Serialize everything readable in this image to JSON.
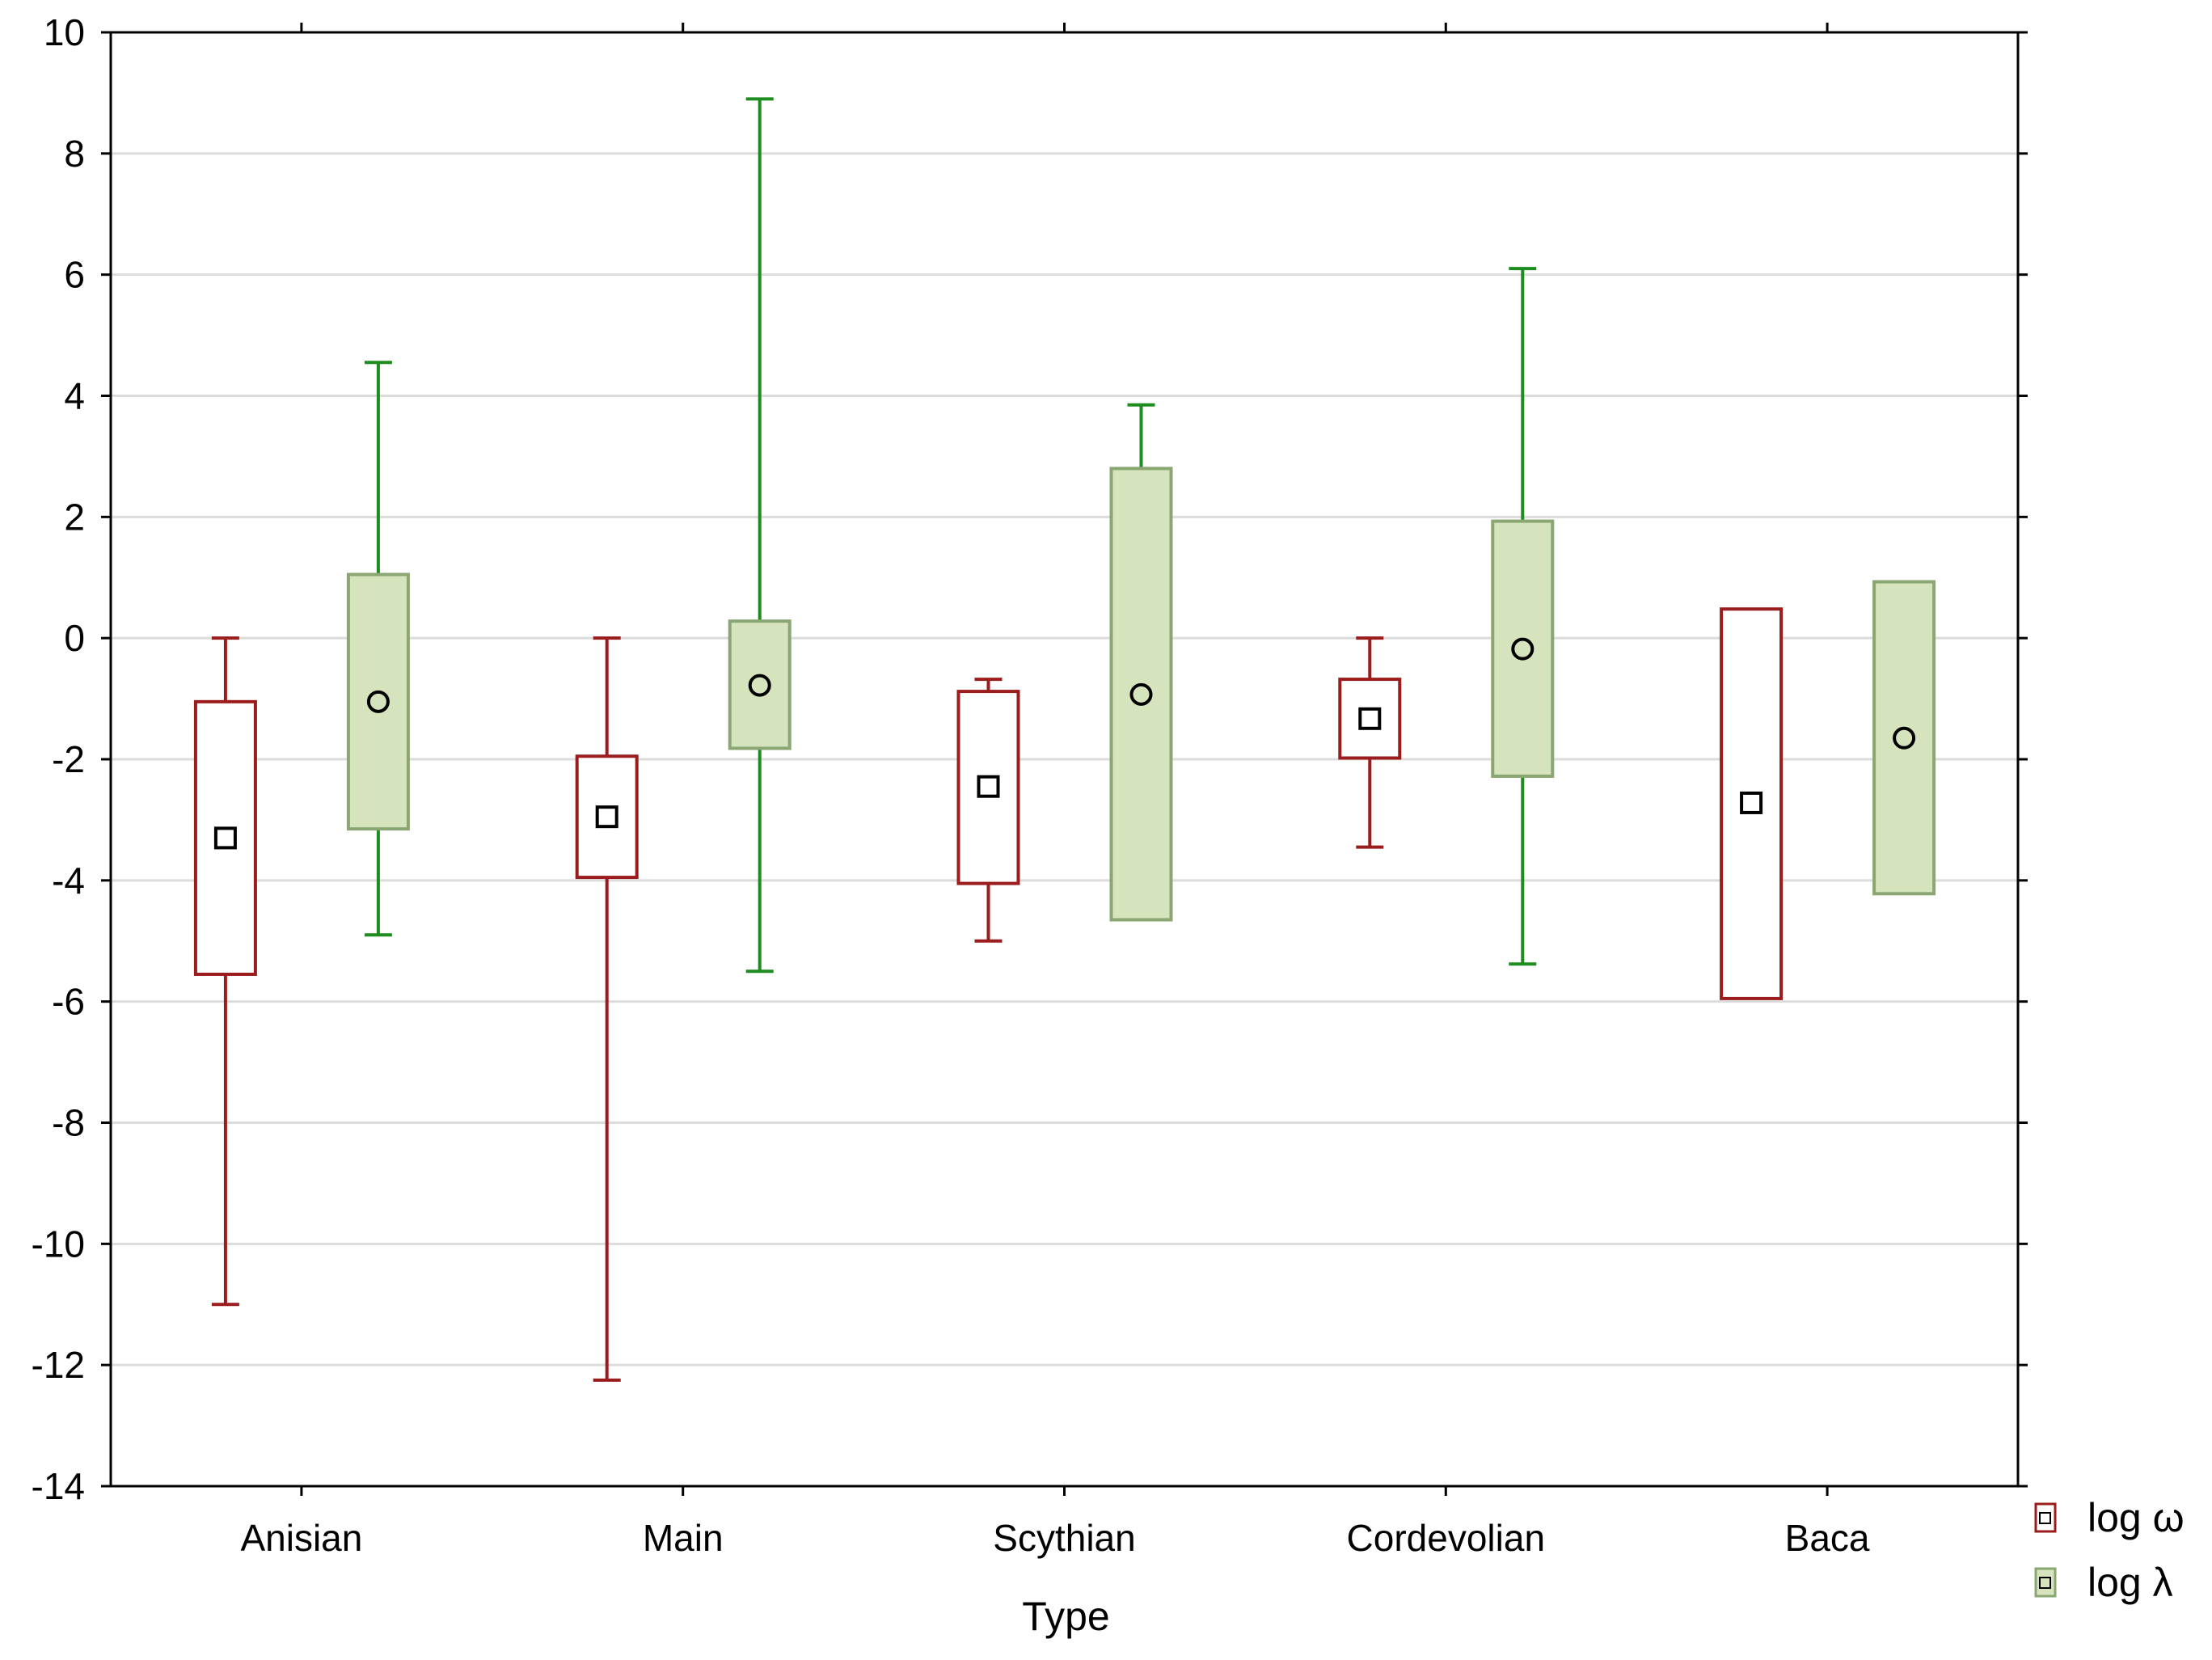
{
  "chart_data": {
    "type": "boxplot",
    "title": "",
    "xlabel": "Type",
    "ylabel": "",
    "ylim": [
      -14,
      10
    ],
    "yticks": [
      10,
      8,
      6,
      4,
      2,
      0,
      -2,
      -4,
      -6,
      -8,
      -10,
      -12,
      -14
    ],
    "ytick_labels": [
      "10",
      "8",
      "6",
      "4",
      "2",
      "0",
      "-2",
      "-4",
      "-6",
      "-8",
      "-10",
      "-12",
      "-14"
    ],
    "grid": true,
    "legend_position": "bottom-right",
    "categories": [
      "Anisian",
      "Main",
      "Scythian",
      "Cordevolian",
      "Baca"
    ],
    "series": [
      {
        "name": "log ω",
        "color": "#9b1c1c",
        "fill": "#ffffff",
        "center_marker": "square",
        "boxes": [
          {
            "whisker_low": -11.0,
            "q1": -5.55,
            "center": -3.3,
            "q3": -1.05,
            "whisker_high": 0.0
          },
          {
            "whisker_low": -12.25,
            "q1": -3.95,
            "center": -2.95,
            "q3": -1.95,
            "whisker_high": 0.0
          },
          {
            "whisker_low": -5.0,
            "q1": -4.05,
            "center": -2.45,
            "q3": -0.88,
            "whisker_high": -0.68
          },
          {
            "whisker_low": -3.45,
            "q1": -1.98,
            "center": -1.33,
            "q3": -0.68,
            "whisker_high": 0.0
          },
          {
            "whisker_low": null,
            "q1": -5.95,
            "center": -2.72,
            "q3": 0.48,
            "whisker_high": null
          }
        ]
      },
      {
        "name": "log λ",
        "color": "#1e8c1e",
        "box_stroke": "#8aa672",
        "fill": "#d5e4bd",
        "center_marker": "circle",
        "boxes": [
          {
            "whisker_low": -4.9,
            "q1": -3.15,
            "center": -1.05,
            "q3": 1.05,
            "whisker_high": 4.55
          },
          {
            "whisker_low": -5.5,
            "q1": -1.82,
            "center": -0.78,
            "q3": 0.28,
            "whisker_high": 8.9
          },
          {
            "whisker_low": null,
            "q1": -4.65,
            "center": -0.93,
            "q3": 2.8,
            "whisker_high": 3.85
          },
          {
            "whisker_low": -5.38,
            "q1": -2.28,
            "center": -0.18,
            "q3": 1.93,
            "whisker_high": 6.1
          },
          {
            "whisker_low": null,
            "q1": -4.22,
            "center": -1.65,
            "q3": 0.93,
            "whisker_high": null
          }
        ]
      }
    ]
  }
}
